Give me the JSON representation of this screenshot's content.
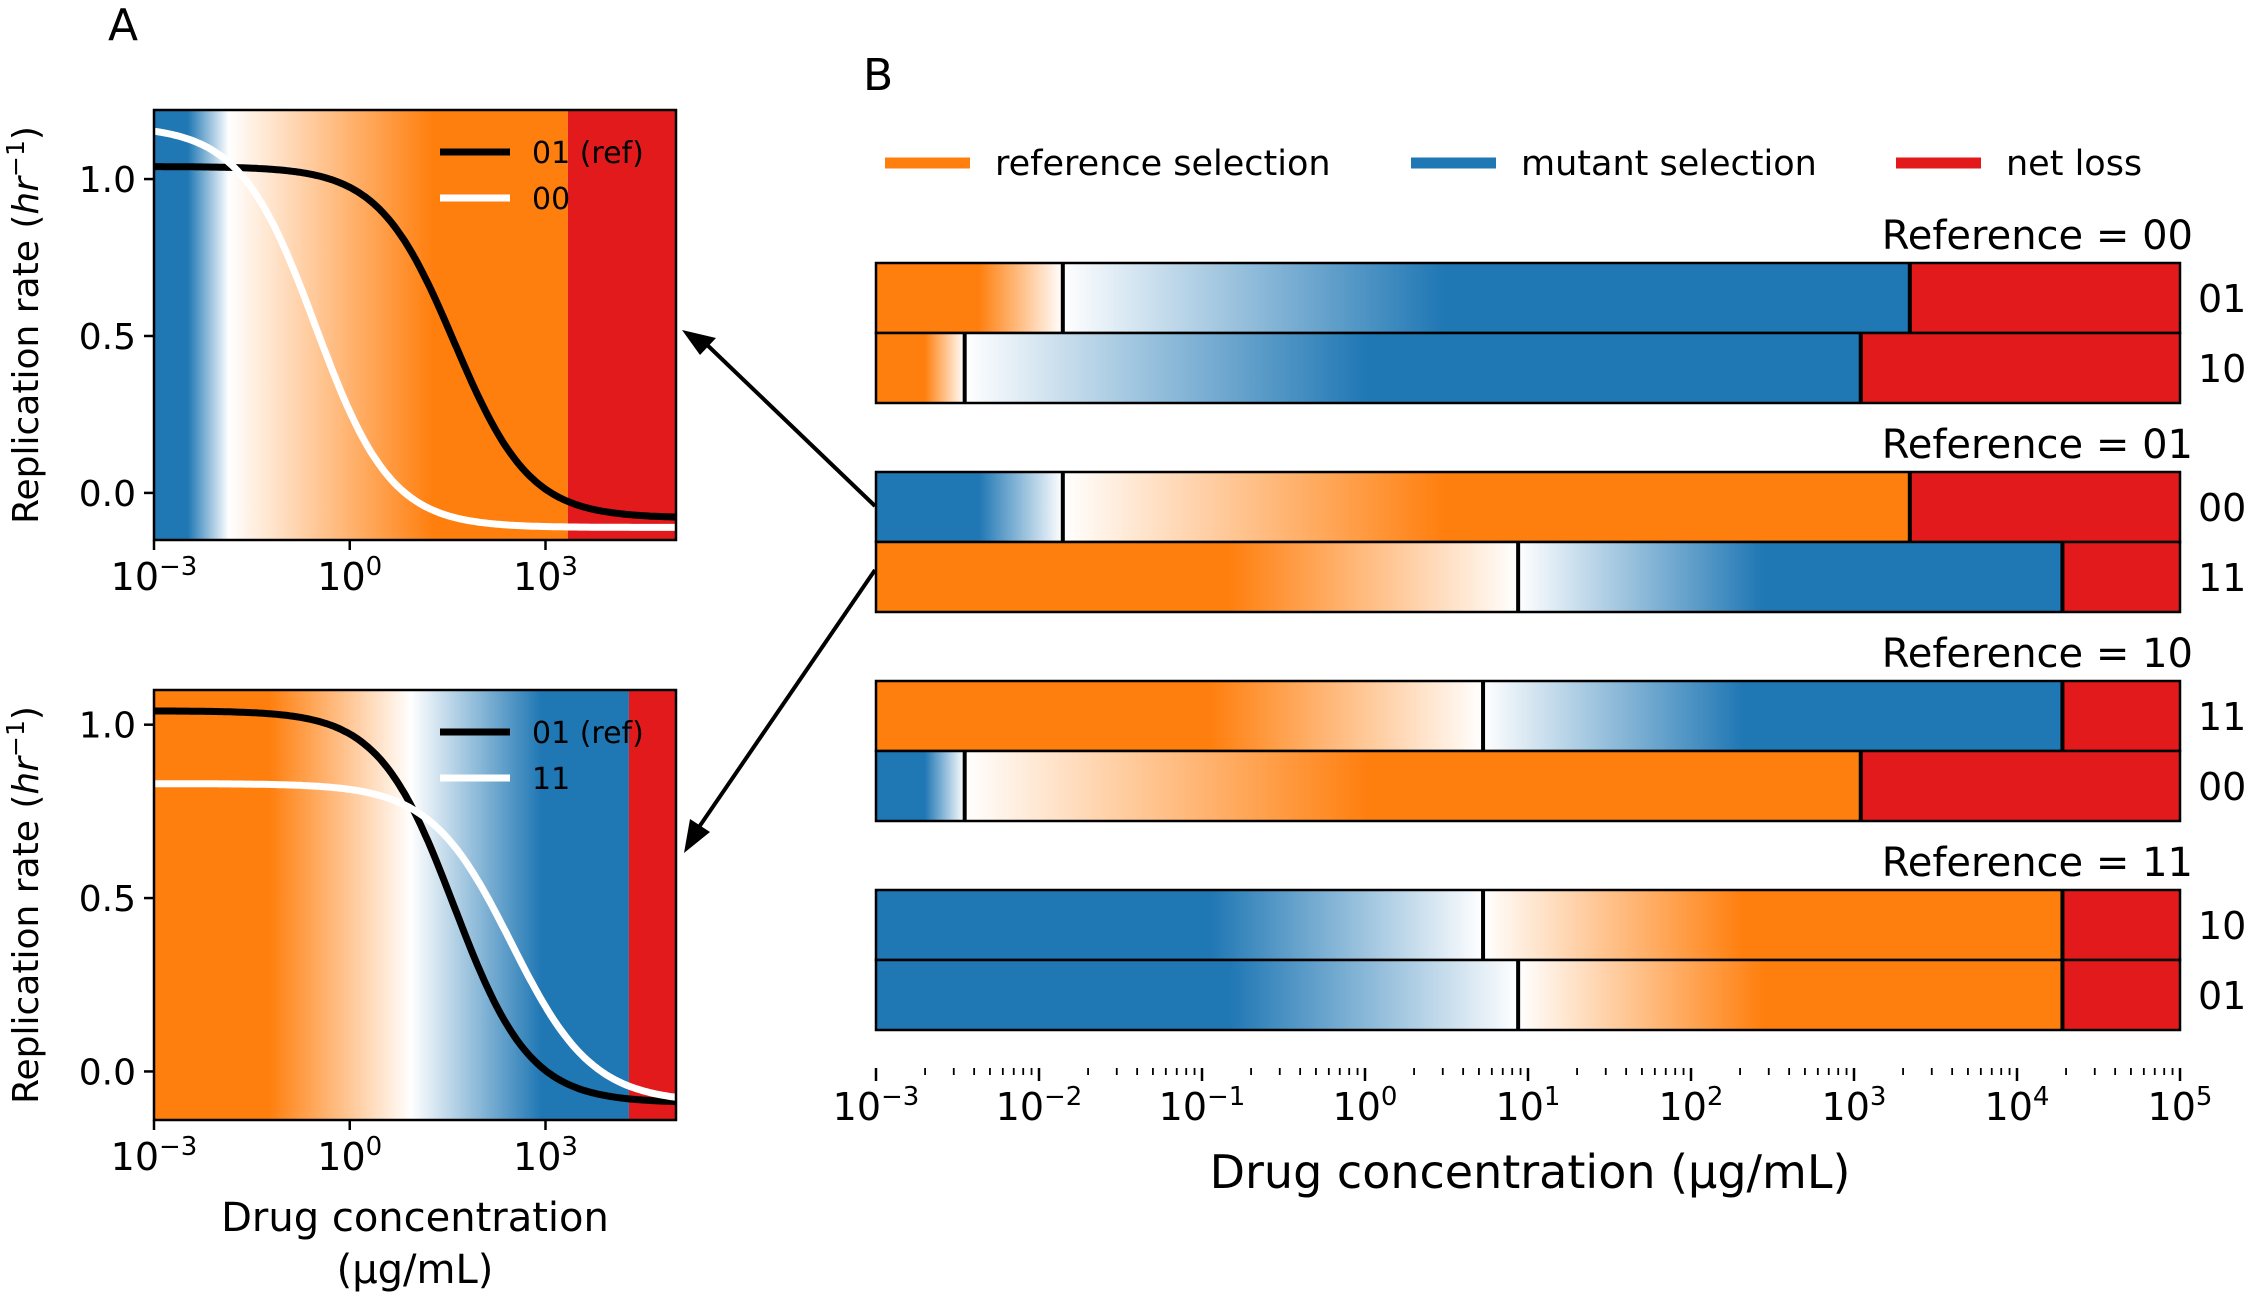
{
  "colors": {
    "orange": "#ff7f0e",
    "blue": "#1f77b4",
    "red": "#e31a1c",
    "black": "#000000",
    "white": "#ffffff"
  },
  "chart_data": [
    {
      "panel_label": "A",
      "type": "line",
      "xscale": "log",
      "xlim": [
        0.001,
        100000
      ],
      "ylim": [
        -0.15,
        1.22
      ],
      "ylabel": "Replication rate",
      "ylabel_unit": "hr",
      "ylabel_exp": "−1",
      "xlabel": "",
      "x_ticks": [
        {
          "base": "10",
          "exp": "−3",
          "value": 0.001
        },
        {
          "base": "10",
          "exp": "0",
          "value": 1
        },
        {
          "base": "10",
          "exp": "3",
          "value": 1000
        }
      ],
      "y_ticks": [
        {
          "label": "0.0",
          "value": 0.0
        },
        {
          "label": "0.5",
          "value": 0.5
        },
        {
          "label": "1.0",
          "value": 1.0
        }
      ],
      "background_regions": [
        {
          "kind": "mutant selection",
          "from": 0.001,
          "to": 0.014,
          "color": "blue"
        },
        {
          "kind": "reference selection",
          "from": 0.014,
          "to": 2200,
          "color": "orange"
        },
        {
          "kind": "net loss",
          "from": 2200,
          "to": 100000,
          "color": "red"
        }
      ],
      "series": [
        {
          "name": "01 (ref)",
          "color": "black",
          "top": 1.04,
          "bottom": -0.08,
          "ic50": 40,
          "hill": 0.75
        },
        {
          "name": "00",
          "color": "white",
          "top": 1.17,
          "bottom": -0.11,
          "ic50": 0.3,
          "hill": 0.75
        }
      ],
      "legend_position": "top-right"
    },
    {
      "panel_label": "",
      "type": "line",
      "xscale": "log",
      "xlim": [
        0.001,
        100000
      ],
      "ylim": [
        -0.14,
        1.1
      ],
      "ylabel": "Replication rate",
      "ylabel_unit": "hr",
      "ylabel_exp": "−1",
      "xlabel": "Drug concentration",
      "xlabel_line2": "(µg/mL)",
      "x_ticks": [
        {
          "base": "10",
          "exp": "−3",
          "value": 0.001
        },
        {
          "base": "10",
          "exp": "0",
          "value": 1
        },
        {
          "base": "10",
          "exp": "3",
          "value": 1000
        }
      ],
      "y_ticks": [
        {
          "label": "0.0",
          "value": 0.0
        },
        {
          "label": "0.5",
          "value": 0.5
        },
        {
          "label": "1.0",
          "value": 1.0
        }
      ],
      "background_regions": [
        {
          "kind": "reference selection",
          "from": 0.001,
          "to": 8.7,
          "color": "orange"
        },
        {
          "kind": "mutant selection",
          "from": 8.7,
          "to": 19000,
          "color": "blue"
        },
        {
          "kind": "net loss",
          "from": 19000,
          "to": 100000,
          "color": "red"
        }
      ],
      "series": [
        {
          "name": "01 (ref)",
          "color": "black",
          "top": 1.04,
          "bottom": -0.09,
          "ic50": 40,
          "hill": 0.75
        },
        {
          "name": "11",
          "color": "white",
          "top": 0.83,
          "bottom": -0.09,
          "ic50": 300,
          "hill": 0.7
        }
      ],
      "legend_position": "top-right"
    },
    {
      "panel_label": "B",
      "type": "heatmap",
      "xscale": "log",
      "xlim": [
        0.001,
        100000
      ],
      "xlabel": "Drug concentration (µg/mL)",
      "x_ticks": [
        {
          "base": "10",
          "exp": "−3",
          "value": 0.001
        },
        {
          "base": "10",
          "exp": "−2",
          "value": 0.01
        },
        {
          "base": "10",
          "exp": "−1",
          "value": 0.1
        },
        {
          "base": "10",
          "exp": "0",
          "value": 1
        },
        {
          "base": "10",
          "exp": "1",
          "value": 10
        },
        {
          "base": "10",
          "exp": "2",
          "value": 100
        },
        {
          "base": "10",
          "exp": "3",
          "value": 1000
        },
        {
          "base": "10",
          "exp": "4",
          "value": 10000
        },
        {
          "base": "10",
          "exp": "5",
          "value": 100000
        }
      ],
      "legend": [
        {
          "label": "reference selection",
          "color": "orange"
        },
        {
          "label": "mutant selection",
          "color": "blue"
        },
        {
          "label": "net loss",
          "color": "red"
        }
      ],
      "legend_position": "top",
      "groups": [
        {
          "title": "Reference = 00",
          "rows": [
            {
              "label": "01",
              "first": "orange",
              "boundary": 0.014,
              "second": "blue",
              "loss_from": 2200
            },
            {
              "label": "10",
              "first": "orange",
              "boundary": 0.0035,
              "second": "blue",
              "loss_from": 1100
            }
          ]
        },
        {
          "title": "Reference = 01",
          "rows": [
            {
              "label": "00",
              "first": "blue",
              "boundary": 0.014,
              "second": "orange",
              "loss_from": 2200
            },
            {
              "label": "11",
              "first": "orange",
              "boundary": 8.7,
              "second": "blue",
              "loss_from": 19000
            }
          ]
        },
        {
          "title": "Reference = 10",
          "rows": [
            {
              "label": "11",
              "first": "orange",
              "boundary": 5.3,
              "second": "blue",
              "loss_from": 19000
            },
            {
              "label": "00",
              "first": "blue",
              "boundary": 0.0035,
              "second": "orange",
              "loss_from": 1100
            }
          ]
        },
        {
          "title": "Reference = 11",
          "rows": [
            {
              "label": "10",
              "first": "blue",
              "boundary": 5.3,
              "second": "orange",
              "loss_from": 19000
            },
            {
              "label": "01",
              "first": "blue",
              "boundary": 8.7,
              "second": "orange",
              "loss_from": 19000
            }
          ]
        }
      ]
    }
  ]
}
